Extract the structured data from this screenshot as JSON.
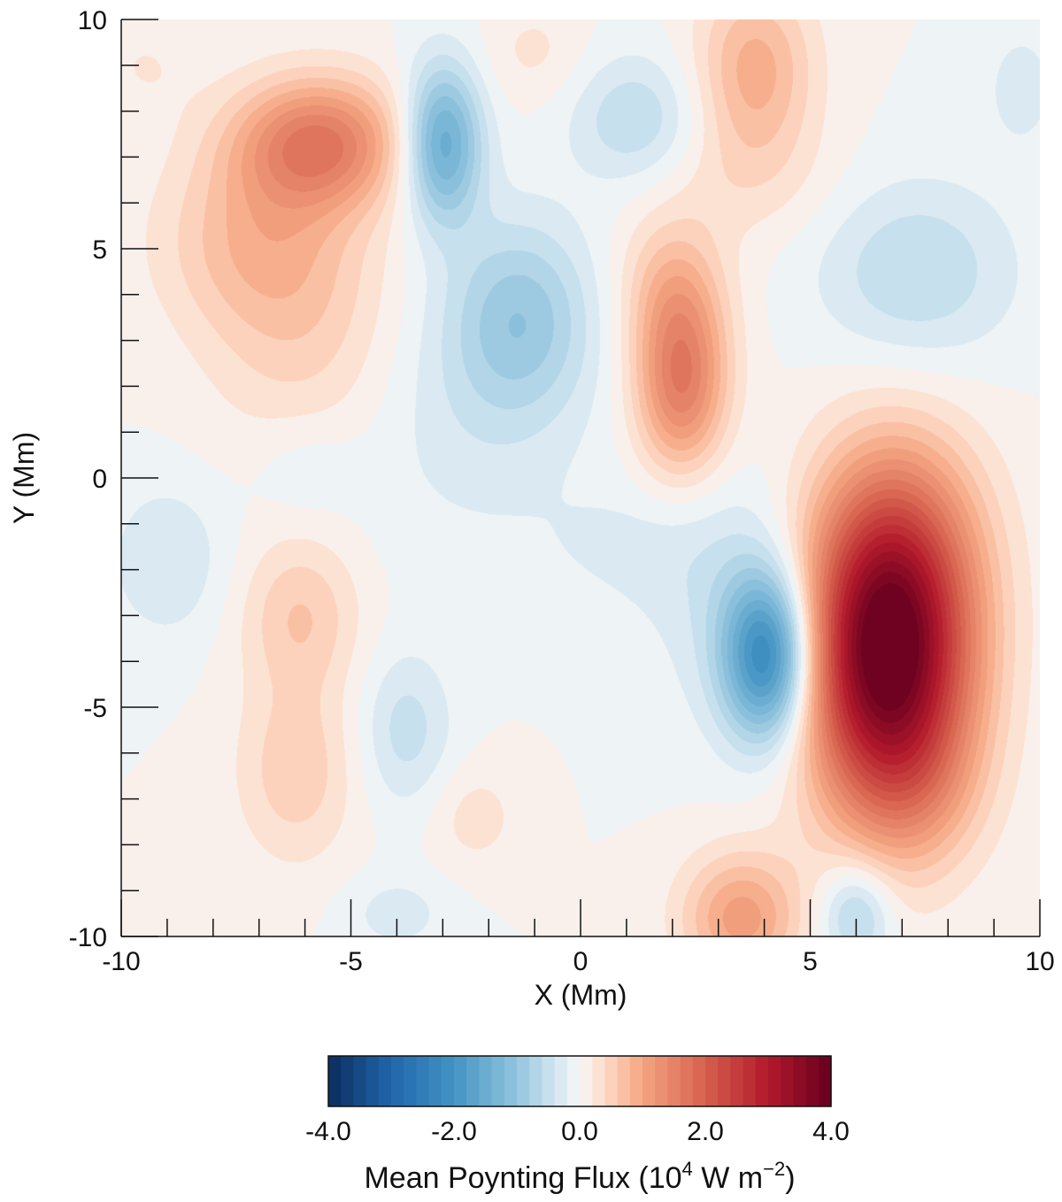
{
  "chart_data": {
    "type": "heatmap",
    "plot_kind": "filled contour map",
    "title": "",
    "xlabel": "X (Mm)",
    "ylabel": "Y (Mm)",
    "xlim": [
      -10,
      10
    ],
    "ylim": [
      -10,
      10
    ],
    "x_ticks": [
      "-10",
      "-5",
      "0",
      "5",
      "10"
    ],
    "y_ticks": [
      "10",
      "5",
      "0",
      "-5",
      "-10"
    ],
    "x_tick_values": [
      -10,
      -5,
      0,
      5,
      10
    ],
    "y_tick_values": [
      10,
      5,
      0,
      -5,
      -10
    ],
    "minor_tick_step": 1,
    "grid": false,
    "colorbar": {
      "label": "Mean Poynting Flux (10",
      "label_exponent": "4",
      "label_unit": " W m",
      "label_unit_exponent": "−2",
      "label_close": ")",
      "ticks": [
        "-4.0",
        "-2.0",
        "0.0",
        "2.0",
        "4.0"
      ],
      "tick_values": [
        -4,
        -2,
        0,
        2,
        4
      ],
      "range": [
        -4,
        4
      ],
      "levels": 40,
      "colormap": "diverging blue-white-red",
      "stops": [
        {
          "v": -4.0,
          "c": "#0b2d5e"
        },
        {
          "v": -3.0,
          "c": "#2166ac"
        },
        {
          "v": -2.0,
          "c": "#4393c3"
        },
        {
          "v": -1.0,
          "c": "#92c5de"
        },
        {
          "v": -0.4,
          "c": "#d1e5f0"
        },
        {
          "v": 0.0,
          "c": "#f7f7f7"
        },
        {
          "v": 0.4,
          "c": "#fddbc7"
        },
        {
          "v": 1.0,
          "c": "#f4a582"
        },
        {
          "v": 2.0,
          "c": "#d6604d"
        },
        {
          "v": 3.0,
          "c": "#b2182b"
        },
        {
          "v": 4.0,
          "c": "#67001f"
        }
      ]
    },
    "features": [
      {
        "x": 6.7,
        "y": -4.0,
        "amp": 4.0,
        "sx": 1.25,
        "sy": 2.3
      },
      {
        "x": 6.9,
        "y": -1.3,
        "amp": 0.9,
        "sx": 1.3,
        "sy": 1.8
      },
      {
        "x": 7.3,
        "y": -6.8,
        "amp": 0.4,
        "sx": 1.0,
        "sy": 1.2
      },
      {
        "x": 4.1,
        "y": -3.9,
        "amp": -2.3,
        "sx": 0.7,
        "sy": 1.3
      },
      {
        "x": 3.2,
        "y": -2.5,
        "amp": -0.35,
        "sx": 1.3,
        "sy": 2.0
      },
      {
        "x": 2.2,
        "y": 2.1,
        "amp": 1.6,
        "sx": 0.7,
        "sy": 1.4
      },
      {
        "x": 2.0,
        "y": 4.2,
        "amp": 0.6,
        "sx": 0.8,
        "sy": 1.1
      },
      {
        "x": -5.7,
        "y": 7.3,
        "amp": 1.6,
        "sx": 1.3,
        "sy": 1.0
      },
      {
        "x": -7.0,
        "y": 5.2,
        "amp": 0.7,
        "sx": 1.5,
        "sy": 1.4
      },
      {
        "x": -6.0,
        "y": 3.0,
        "amp": 0.45,
        "sx": 1.5,
        "sy": 1.8
      },
      {
        "x": -3.0,
        "y": 7.3,
        "amp": -1.6,
        "sx": 0.6,
        "sy": 1.2
      },
      {
        "x": -1.3,
        "y": 3.5,
        "amp": -0.85,
        "sx": 1.1,
        "sy": 1.5
      },
      {
        "x": -2.5,
        "y": 1.5,
        "amp": -0.3,
        "sx": 1.8,
        "sy": 2.2
      },
      {
        "x": 1.2,
        "y": 7.8,
        "amp": -0.6,
        "sx": 1.0,
        "sy": 1.0
      },
      {
        "x": 3.8,
        "y": 8.9,
        "amp": 0.9,
        "sx": 0.9,
        "sy": 1.4
      },
      {
        "x": 3.5,
        "y": 6.5,
        "amp": 0.25,
        "sx": 1.5,
        "sy": 1.0
      },
      {
        "x": 7.3,
        "y": 4.5,
        "amp": -0.6,
        "sx": 1.5,
        "sy": 1.4
      },
      {
        "x": 3.5,
        "y": -9.6,
        "amp": 1.1,
        "sx": 0.9,
        "sy": 1.0
      },
      {
        "x": 6.0,
        "y": -9.5,
        "amp": -0.8,
        "sx": 0.55,
        "sy": 0.8
      },
      {
        "x": -6.1,
        "y": -3.0,
        "amp": 0.6,
        "sx": 0.9,
        "sy": 1.2
      },
      {
        "x": -6.2,
        "y": -6.4,
        "amp": 0.55,
        "sx": 0.9,
        "sy": 1.4
      },
      {
        "x": -3.8,
        "y": -5.5,
        "amp": -0.5,
        "sx": 0.7,
        "sy": 1.2
      },
      {
        "x": -9.0,
        "y": -1.8,
        "amp": -0.4,
        "sx": 0.9,
        "sy": 1.2
      },
      {
        "x": -6.0,
        "y": 0.2,
        "amp": -0.2,
        "sx": 0.8,
        "sy": 0.8
      },
      {
        "x": -2.3,
        "y": -7.4,
        "amp": 0.3,
        "sx": 0.7,
        "sy": 0.8
      },
      {
        "x": -4.0,
        "y": -9.5,
        "amp": -0.3,
        "sx": 0.8,
        "sy": 0.6
      },
      {
        "x": 1.0,
        "y": -1.5,
        "amp": -0.2,
        "sx": 1.5,
        "sy": 1.0
      },
      {
        "x": -9.5,
        "y": 9.0,
        "amp": 0.2,
        "sx": 0.8,
        "sy": 0.8
      },
      {
        "x": 9.6,
        "y": 8.5,
        "amp": -0.3,
        "sx": 0.6,
        "sy": 1.0
      },
      {
        "x": -1.0,
        "y": 9.3,
        "amp": 0.25,
        "sx": 0.8,
        "sy": 0.8
      }
    ]
  }
}
